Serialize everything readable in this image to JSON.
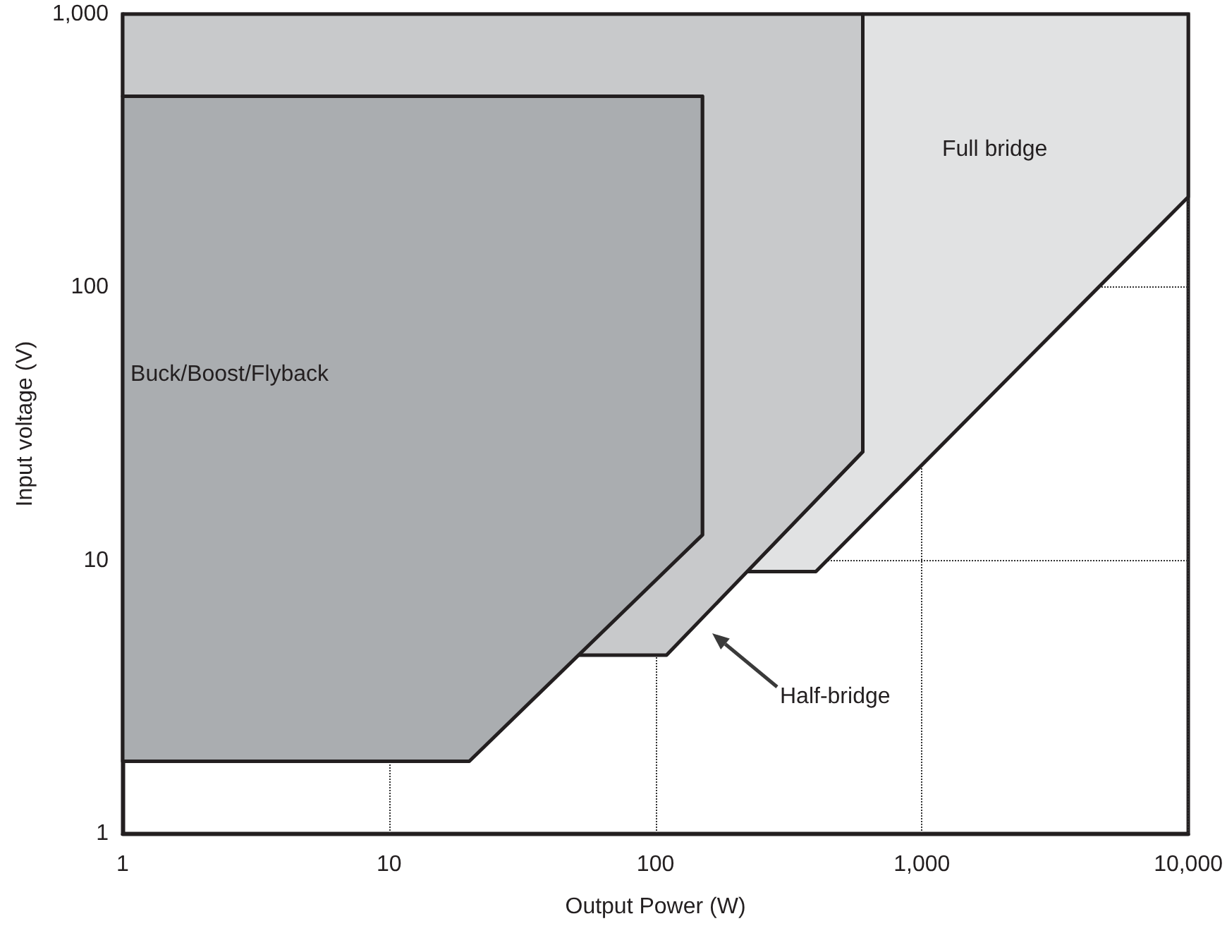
{
  "chart_data": {
    "type": "area",
    "xlabel": "Output Power (W)",
    "ylabel": "Input voltage (V)",
    "log": "xy",
    "grid": true,
    "xlim": [
      1,
      10000
    ],
    "xticks": [
      1,
      10,
      100,
      {
        "value": 1000,
        "label": "1,000"
      },
      {
        "value": 10000,
        "label": "10,000"
      }
    ],
    "ylim": [
      1,
      1000
    ],
    "yticks": [
      1,
      10,
      100,
      {
        "value": 1000,
        "label": "1,000"
      }
    ],
    "series": [
      {
        "color": "#e1e2e3",
        "x": [
          220,
          400,
          10000,
          10000,
          600,
          600,
          220
        ],
        "values": [
          9.1,
          9.1,
          214,
          1000,
          1000,
          25,
          9.1
        ]
      },
      {
        "color": "#c8c9cb",
        "x": [
          50,
          110,
          600,
          600,
          1,
          1,
          150,
          150,
          50
        ],
        "values": [
          4.5,
          4.5,
          25,
          1000,
          1000,
          500,
          500,
          12.4,
          4.5
        ]
      },
      {
        "color": "#aaadb0",
        "x": [
          1,
          20,
          150,
          150,
          1,
          1
        ],
        "values": [
          1.84,
          1.84,
          12.4,
          500,
          500,
          1.84
        ]
      }
    ],
    "annotations": [
      {
        "text": "Buck/Boost/Flyback",
        "x": 1.07,
        "y": 48
      },
      "Full bridge",
      "Half-bridge"
    ]
  }
}
